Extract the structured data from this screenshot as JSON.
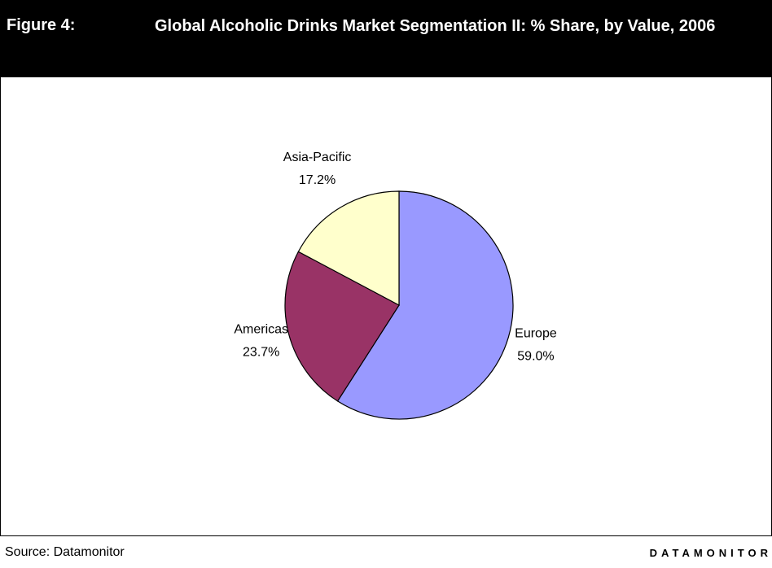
{
  "figure_label": "Figure 4:",
  "source": "Source: Datamonitor",
  "brand": "DATAMONITOR",
  "chart_data": {
    "type": "pie",
    "title": "Global Alcoholic Drinks Market Segmentation II: % Share, by Value, 2006",
    "categories": [
      "Europe",
      "Americas",
      "Asia-Pacific"
    ],
    "values": [
      59.0,
      23.7,
      17.2
    ],
    "value_labels": [
      "59.0%",
      "23.7%",
      "17.2%"
    ],
    "colors": [
      "#9999ff",
      "#993366",
      "#ffffcc"
    ]
  }
}
